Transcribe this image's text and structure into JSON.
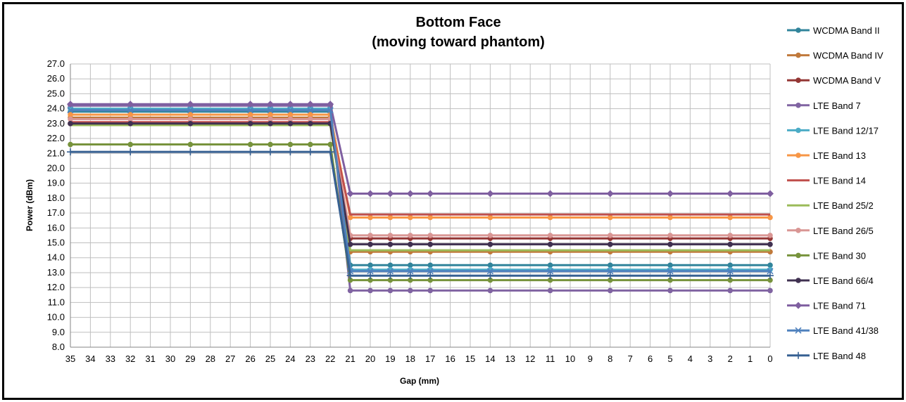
{
  "chart_data": {
    "type": "line",
    "title": "Bottom Face",
    "subtitle": "(moving toward phantom)",
    "xlabel": "Gap (mm)",
    "ylabel": "Power (dBm)",
    "ylim": [
      8,
      27
    ],
    "y_step": 1,
    "x_reversed": true,
    "x_ticks": [
      "35",
      "34",
      "33",
      "32",
      "31",
      "30",
      "29",
      "28",
      "27",
      "26",
      "25",
      "24",
      "23",
      "22",
      "21",
      "20",
      "19",
      "18",
      "17",
      "16",
      "15",
      "14",
      "13",
      "12",
      "11",
      "10",
      "9",
      "8",
      "7",
      "6",
      "5",
      "4",
      "3",
      "2",
      "1",
      "0"
    ],
    "x": [
      35,
      32,
      29,
      26,
      25,
      24,
      23,
      22,
      21,
      20,
      19,
      18,
      17,
      14,
      11,
      8,
      5,
      2,
      0
    ],
    "grid": true,
    "legend_position": "right",
    "series": [
      {
        "name": "WCDMA Band II",
        "color": "#31849B",
        "marker": "circle",
        "values": [
          23.8,
          23.8,
          23.8,
          23.8,
          23.8,
          23.8,
          23.8,
          23.8,
          13.5,
          13.5,
          13.5,
          13.5,
          13.5,
          13.5,
          13.5,
          13.5,
          13.5,
          13.5,
          13.5
        ]
      },
      {
        "name": "WCDMA Band IV",
        "color": "#C0793B",
        "marker": "circle",
        "values": [
          23.4,
          23.4,
          23.4,
          23.4,
          23.4,
          23.4,
          23.4,
          23.4,
          14.4,
          14.4,
          14.4,
          14.4,
          14.4,
          14.4,
          14.4,
          14.4,
          14.4,
          14.4,
          14.4
        ]
      },
      {
        "name": "WCDMA Band V",
        "color": "#943634",
        "marker": "circle",
        "values": [
          23.0,
          23.0,
          23.0,
          23.0,
          23.0,
          23.0,
          23.0,
          23.0,
          15.3,
          15.3,
          15.3,
          15.3,
          15.3,
          15.3,
          15.3,
          15.3,
          15.3,
          15.3,
          15.3
        ]
      },
      {
        "name": "LTE Band 7",
        "color": "#8064A2",
        "marker": "circle",
        "values": [
          24.2,
          24.2,
          24.2,
          24.2,
          24.2,
          24.2,
          24.2,
          24.2,
          11.8,
          11.8,
          11.8,
          11.8,
          11.8,
          11.8,
          11.8,
          11.8,
          11.8,
          11.8,
          11.8
        ]
      },
      {
        "name": "LTE Band 12/17",
        "color": "#4BACC6",
        "marker": "circle",
        "values": [
          24.0,
          24.0,
          24.0,
          24.0,
          24.0,
          24.0,
          24.0,
          24.0,
          13.2,
          13.2,
          13.2,
          13.2,
          13.2,
          13.2,
          13.2,
          13.2,
          13.2,
          13.2,
          13.2
        ]
      },
      {
        "name": "LTE Band 13",
        "color": "#F79646",
        "marker": "circle",
        "values": [
          23.6,
          23.6,
          23.6,
          23.6,
          23.6,
          23.6,
          23.6,
          23.6,
          16.7,
          16.7,
          16.7,
          16.7,
          16.7,
          16.7,
          16.7,
          16.7,
          16.7,
          16.7,
          16.7
        ]
      },
      {
        "name": "LTE Band 14",
        "color": "#C0504D",
        "marker": "none",
        "values": [
          23.1,
          23.1,
          23.1,
          23.1,
          23.1,
          23.1,
          23.1,
          23.1,
          16.9,
          16.9,
          16.9,
          16.9,
          16.9,
          16.9,
          16.9,
          16.9,
          16.9,
          16.9,
          16.9
        ]
      },
      {
        "name": "LTE Band 25/2",
        "color": "#9BBB59",
        "marker": "none",
        "values": [
          22.9,
          22.9,
          22.9,
          22.9,
          22.9,
          22.9,
          22.9,
          22.9,
          14.5,
          14.5,
          14.5,
          14.5,
          14.5,
          14.5,
          14.5,
          14.5,
          14.5,
          14.5,
          14.5
        ]
      },
      {
        "name": "LTE Band 26/5",
        "color": "#D99694",
        "marker": "circle",
        "values": [
          23.3,
          23.3,
          23.3,
          23.3,
          23.3,
          23.3,
          23.3,
          23.3,
          15.5,
          15.5,
          15.5,
          15.5,
          15.5,
          15.5,
          15.5,
          15.5,
          15.5,
          15.5,
          15.5
        ]
      },
      {
        "name": "LTE Band 30",
        "color": "#77933C",
        "marker": "circle",
        "values": [
          21.6,
          21.6,
          21.6,
          21.6,
          21.6,
          21.6,
          21.6,
          21.6,
          12.5,
          12.5,
          12.5,
          12.5,
          12.5,
          12.5,
          12.5,
          12.5,
          12.5,
          12.5,
          12.5
        ]
      },
      {
        "name": "LTE Band 66/4",
        "color": "#403151",
        "marker": "circle",
        "values": [
          23.0,
          23.0,
          23.0,
          23.0,
          23.0,
          23.0,
          23.0,
          23.0,
          14.9,
          14.9,
          14.9,
          14.9,
          14.9,
          14.9,
          14.9,
          14.9,
          14.9,
          14.9,
          14.9
        ]
      },
      {
        "name": "LTE Band 71",
        "color": "#7F5FA0",
        "marker": "diamond",
        "values": [
          24.3,
          24.3,
          24.3,
          24.3,
          24.3,
          24.3,
          24.3,
          24.3,
          18.3,
          18.3,
          18.3,
          18.3,
          18.3,
          18.3,
          18.3,
          18.3,
          18.3,
          18.3,
          18.3
        ]
      },
      {
        "name": "LTE Band 41/38",
        "color": "#4F81BD",
        "marker": "x",
        "values": [
          23.9,
          23.9,
          23.9,
          23.9,
          23.9,
          23.9,
          23.9,
          23.9,
          13.1,
          13.1,
          13.1,
          13.1,
          13.1,
          13.1,
          13.1,
          13.1,
          13.1,
          13.1,
          13.1
        ]
      },
      {
        "name": "LTE Band 48",
        "color": "#376092",
        "marker": "plus",
        "values": [
          21.1,
          21.1,
          21.1,
          21.1,
          21.1,
          21.1,
          21.1,
          21.1,
          12.8,
          12.8,
          12.8,
          12.8,
          12.8,
          12.8,
          12.8,
          12.8,
          12.8,
          12.8,
          12.8
        ]
      }
    ]
  }
}
